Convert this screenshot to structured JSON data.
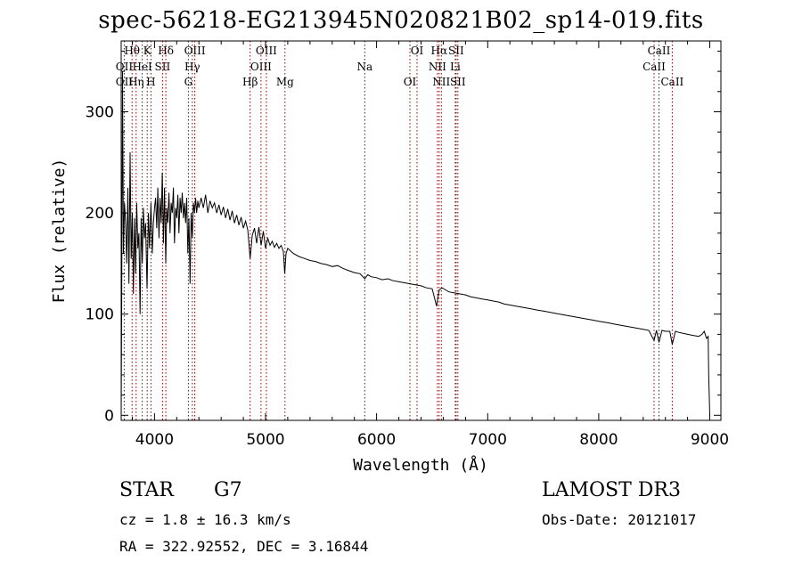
{
  "title": "spec-56218-EG213945N020821B02_sp14-019.fits",
  "info": {
    "class_label": "STAR",
    "subclass": "G7",
    "survey": "LAMOST DR3",
    "cz_line": "cz = 1.8 ± 16.3 km/s",
    "obs_date": "Obs-Date: 20121017",
    "coords": "RA = 322.92552, DEC =   3.16844"
  },
  "chart_data": {
    "type": "line",
    "title": "spec-56218-EG213945N020821B02_sp14-019.fits",
    "xlabel": "Wavelength (Å)",
    "ylabel": "Flux (relative)",
    "xlim": [
      3700,
      9100
    ],
    "ylim": [
      -5,
      370
    ],
    "xticks": [
      4000,
      5000,
      6000,
      7000,
      8000,
      9000
    ],
    "yticks": [
      0,
      100,
      200,
      300
    ],
    "series": [
      {
        "name": "flux",
        "x": [
          3700,
          3705,
          3712,
          3720,
          3730,
          3740,
          3750,
          3760,
          3770,
          3780,
          3790,
          3800,
          3810,
          3820,
          3830,
          3840,
          3850,
          3860,
          3870,
          3880,
          3890,
          3900,
          3910,
          3920,
          3933,
          3945,
          3955,
          3968,
          3980,
          3990,
          4000,
          4010,
          4020,
          4030,
          4040,
          4050,
          4060,
          4070,
          4080,
          4090,
          4101,
          4110,
          4120,
          4130,
          4140,
          4150,
          4160,
          4170,
          4180,
          4190,
          4200,
          4210,
          4220,
          4230,
          4240,
          4250,
          4260,
          4270,
          4280,
          4290,
          4300,
          4310,
          4320,
          4330,
          4340,
          4350,
          4360,
          4370,
          4380,
          4390,
          4400,
          4420,
          4440,
          4460,
          4480,
          4500,
          4520,
          4540,
          4560,
          4580,
          4600,
          4620,
          4640,
          4660,
          4680,
          4700,
          4720,
          4740,
          4760,
          4780,
          4800,
          4820,
          4840,
          4861,
          4880,
          4900,
          4920,
          4940,
          4960,
          4980,
          5000,
          5020,
          5040,
          5060,
          5080,
          5100,
          5120,
          5140,
          5160,
          5172,
          5184,
          5200,
          5250,
          5300,
          5350,
          5400,
          5450,
          5500,
          5550,
          5600,
          5650,
          5700,
          5750,
          5800,
          5850,
          5893,
          5920,
          5950,
          6000,
          6050,
          6100,
          6150,
          6200,
          6250,
          6300,
          6350,
          6400,
          6450,
          6500,
          6540,
          6563,
          6590,
          6620,
          6650,
          6700,
          6750,
          6800,
          6850,
          6900,
          6950,
          7000,
          7050,
          7100,
          7150,
          7200,
          7250,
          7300,
          7350,
          7400,
          7450,
          7500,
          7550,
          7600,
          7650,
          7700,
          7750,
          7800,
          7850,
          7900,
          7950,
          8000,
          8050,
          8100,
          8150,
          8200,
          8250,
          8300,
          8350,
          8400,
          8450,
          8498,
          8520,
          8542,
          8570,
          8600,
          8640,
          8662,
          8690,
          8720,
          8760,
          8800,
          8850,
          8900,
          8930,
          8950,
          8970,
          8985,
          8990,
          8995,
          9000
        ],
        "values": [
          0,
          120,
          340,
          160,
          210,
          190,
          150,
          225,
          130,
          260,
          155,
          200,
          120,
          195,
          140,
          210,
          165,
          180,
          100,
          195,
          150,
          205,
          175,
          190,
          125,
          200,
          165,
          210,
          160,
          190,
          205,
          215,
          185,
          225,
          175,
          215,
          190,
          240,
          170,
          225,
          150,
          205,
          190,
          220,
          180,
          210,
          200,
          225,
          170,
          205,
          195,
          218,
          180,
          215,
          200,
          220,
          195,
          210,
          190,
          215,
          160,
          195,
          130,
          200,
          175,
          210,
          200,
          215,
          200,
          212,
          205,
          215,
          205,
          218,
          200,
          212,
          205,
          210,
          200,
          208,
          198,
          206,
          195,
          204,
          193,
          202,
          190,
          198,
          188,
          196,
          185,
          192,
          183,
          155,
          178,
          185,
          170,
          186,
          168,
          182,
          165,
          175,
          168,
          172,
          166,
          170,
          165,
          168,
          162,
          140,
          160,
          165,
          160,
          157,
          155,
          153,
          152,
          150,
          149,
          147,
          148,
          145,
          143,
          141,
          140,
          135,
          139,
          137,
          136,
          134,
          135,
          133,
          132,
          131,
          130,
          129,
          128,
          126,
          125,
          108,
          124,
          126,
          124,
          122,
          121,
          120,
          119,
          117,
          116,
          115,
          114,
          113,
          112,
          110,
          109,
          108,
          107,
          106,
          105,
          104,
          103,
          102,
          101,
          100,
          99,
          98,
          97,
          96,
          95,
          94,
          93,
          92,
          91,
          90,
          89,
          88,
          87,
          86,
          85,
          84,
          74,
          84,
          72,
          84,
          83,
          83,
          70,
          83,
          82,
          81,
          80,
          79,
          78,
          80,
          83,
          76,
          78,
          40,
          20,
          0
        ]
      }
    ],
    "spectral_lines": [
      {
        "label": "Hθ",
        "wave": 3798,
        "row": 1
      },
      {
        "label": "K",
        "wave": 3934,
        "row": 1
      },
      {
        "label": "Hδ",
        "wave": 4102,
        "row": 1
      },
      {
        "label": "OIII",
        "wave": 4363,
        "row": 1
      },
      {
        "label": "OIII",
        "wave": 5007,
        "row": 1
      },
      {
        "label": "OI",
        "wave": 6364,
        "row": 1
      },
      {
        "label": "Hα",
        "wave": 6563,
        "row": 1
      },
      {
        "label": "SII",
        "wave": 6716,
        "row": 1
      },
      {
        "label": "CaII",
        "wave": 8542,
        "row": 1
      },
      {
        "label": "OII",
        "wave": 3727,
        "row": 2
      },
      {
        "label": "HeI",
        "wave": 3889,
        "row": 2
      },
      {
        "label": "SII",
        "wave": 4072,
        "row": 2
      },
      {
        "label": "Hγ",
        "wave": 4340,
        "row": 2
      },
      {
        "label": "OIII",
        "wave": 4959,
        "row": 2
      },
      {
        "label": "Na",
        "wave": 5893,
        "row": 2
      },
      {
        "label": "NII",
        "wave": 6548,
        "row": 2
      },
      {
        "label": "Li",
        "wave": 6708,
        "row": 2
      },
      {
        "label": "CaII",
        "wave": 8498,
        "row": 2
      },
      {
        "label": "OII",
        "wave": 3727,
        "row": 3
      },
      {
        "label": "Hη",
        "wave": 3835,
        "row": 3
      },
      {
        "label": "H",
        "wave": 3968,
        "row": 3
      },
      {
        "label": "G",
        "wave": 4305,
        "row": 3
      },
      {
        "label": "Hβ",
        "wave": 4861,
        "row": 3
      },
      {
        "label": "Mg",
        "wave": 5175,
        "row": 3
      },
      {
        "label": "OI",
        "wave": 6300,
        "row": 3
      },
      {
        "label": "NII",
        "wave": 6583,
        "row": 3
      },
      {
        "label": "SII",
        "wave": 6731,
        "row": 3
      },
      {
        "label": "CaII",
        "wave": 8662,
        "row": 3
      }
    ],
    "line_marker_waves": [
      3727,
      3798,
      3835,
      3889,
      3934,
      3968,
      4072,
      4102,
      4305,
      4340,
      4363,
      4861,
      4959,
      5007,
      5175,
      5893,
      6300,
      6364,
      6548,
      6563,
      6583,
      6708,
      6716,
      6731,
      8498,
      8542,
      8662
    ],
    "line_color": "#8b0000",
    "data_color": "#000000"
  }
}
